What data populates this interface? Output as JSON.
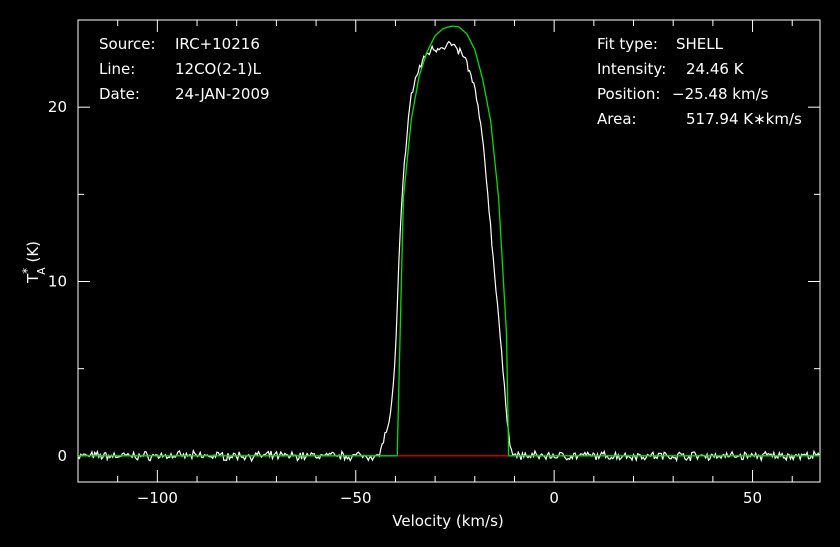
{
  "info_left": {
    "source_label": "Source:",
    "source_value": "IRC+10216",
    "line_label": "Line:",
    "line_value": "12CO(2-1)L",
    "date_label": "Date:",
    "date_value": "24-JAN-2009"
  },
  "info_right": {
    "fit_label": "Fit type:",
    "fit_value": "SHELL",
    "intensity_label": "Intensity:",
    "intensity_value": "24.46 K",
    "position_label": "Position:",
    "position_value": "−25.48 km/s",
    "area_label": "Area:",
    "area_value": "517.94 K∗km/s"
  },
  "chart_data": {
    "type": "line",
    "xlabel": "Velocity (km/s)",
    "ylabel": "T*A (K)",
    "xlim": [
      -120,
      67
    ],
    "ylim": [
      -1.5,
      25
    ],
    "x_ticks": [
      -100,
      -50,
      0,
      50
    ],
    "x_tick_labels": [
      "−100",
      "−50",
      "0",
      "50"
    ],
    "y_ticks": [
      0,
      10,
      20
    ],
    "y_tick_labels": [
      "0",
      "10",
      "20"
    ],
    "series": [
      {
        "role": "observed spectrum",
        "color": "#ffffff",
        "x": [
          -120,
          -50,
          -44,
          -43,
          -42,
          -41,
          -40,
          -39,
          -38,
          -37,
          -36,
          -35,
          -34,
          -33,
          -32,
          -31,
          -30,
          -29,
          -28,
          -27,
          -26,
          -25,
          -24,
          -23,
          -22,
          -21,
          -20,
          -19,
          -18,
          -17,
          -16,
          -15,
          -14,
          -13,
          -12,
          -11,
          -10,
          0,
          67
        ],
        "y": [
          0,
          0,
          0,
          1.0,
          1.5,
          2.8,
          5.5,
          12.0,
          16.0,
          18.8,
          20.6,
          21.6,
          22.2,
          22.7,
          23.1,
          23.3,
          23.4,
          23.4,
          23.5,
          23.6,
          23.6,
          23.4,
          23.2,
          23.0,
          22.5,
          21.8,
          21.0,
          19.8,
          18.0,
          15.8,
          13.0,
          10.5,
          8.0,
          5.0,
          2.5,
          0.5,
          0,
          0,
          0
        ]
      },
      {
        "role": "shell fit",
        "color": "#00e000",
        "x": [
          -120,
          -39.5,
          -39.5,
          -38,
          -36,
          -34,
          -32,
          -30,
          -28,
          -26,
          -25.5,
          -24,
          -22,
          -20,
          -18,
          -16,
          -14,
          -12,
          -11.5,
          -11.5,
          67
        ],
        "y": [
          0,
          0,
          0.5,
          14.8,
          19.3,
          21.8,
          23.2,
          24.1,
          24.5,
          24.64,
          24.65,
          24.6,
          24.2,
          23.3,
          21.6,
          19.2,
          14.8,
          7.0,
          0.5,
          0,
          0
        ]
      },
      {
        "role": "baseline window",
        "color": "#e00000",
        "x": [
          -39.5,
          -11.5
        ],
        "y": [
          0,
          0
        ]
      }
    ]
  }
}
